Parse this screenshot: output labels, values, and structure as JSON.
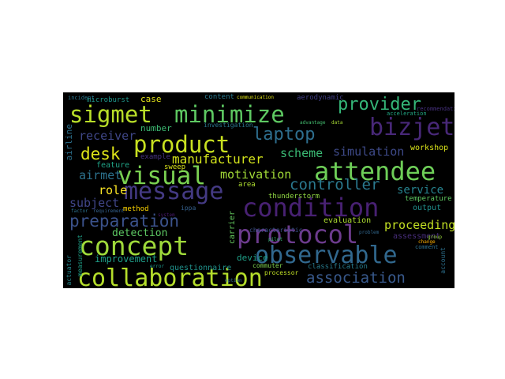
{
  "words": [
    {
      "text": "collaboration",
      "color": "#b5de2b"
    },
    {
      "text": "concept",
      "color": "#9fda3a"
    },
    {
      "text": "observable",
      "color": "#31688e"
    },
    {
      "text": "protocol",
      "color": "#6c3b8d"
    },
    {
      "text": "condition",
      "color": "#482173"
    },
    {
      "text": "attendee",
      "color": "#6ece58"
    },
    {
      "text": "message",
      "color": "#443a83"
    },
    {
      "text": "visual",
      "color": "#7ad151"
    },
    {
      "text": "product",
      "color": "#c8e020"
    },
    {
      "text": "sigmet",
      "color": "#b8de29"
    },
    {
      "text": "minimize",
      "color": "#5ec962"
    },
    {
      "text": "bizjet",
      "color": "#482878"
    },
    {
      "text": "provider",
      "color": "#35b779"
    },
    {
      "text": "laptop",
      "color": "#2e6e8e"
    },
    {
      "text": "desk",
      "color": "#dde318"
    },
    {
      "text": "preparation",
      "color": "#3b528b"
    },
    {
      "text": "association",
      "color": "#38598c"
    },
    {
      "text": "controller",
      "color": "#2a788e"
    },
    {
      "text": "manufacturer",
      "color": "#d2e21b"
    },
    {
      "text": "motivation",
      "color": "#a2da37"
    },
    {
      "text": "scheme",
      "color": "#3bbb75"
    },
    {
      "text": "simulation",
      "color": "#3e4a89"
    },
    {
      "text": "receiver",
      "color": "#3f4788"
    },
    {
      "text": "airmet",
      "color": "#2c728e"
    },
    {
      "text": "role",
      "color": "#fde725"
    },
    {
      "text": "subject",
      "color": "#404688"
    },
    {
      "text": "service",
      "color": "#26828e"
    },
    {
      "text": "proceeding",
      "color": "#c2df23"
    },
    {
      "text": "detection",
      "color": "#5dc863"
    },
    {
      "text": "improvement",
      "color": "#1f9e89"
    },
    {
      "text": "device",
      "color": "#1fa088"
    },
    {
      "text": "questionnaire",
      "color": "#20928c"
    },
    {
      "text": "evaluation",
      "color": "#addc30"
    },
    {
      "text": "number",
      "color": "#3dbc74"
    },
    {
      "text": "case",
      "color": "#e5e419"
    },
    {
      "text": "microburst",
      "color": "#1f968b"
    },
    {
      "text": "workshop",
      "color": "#d8e219"
    },
    {
      "text": "airline",
      "color": "#2c718e"
    },
    {
      "text": "feature",
      "color": "#20a386"
    },
    {
      "text": "example",
      "color": "#46337e"
    },
    {
      "text": "sweep",
      "color": "#dae319"
    },
    {
      "text": "investigation",
      "color": "#2a768e"
    },
    {
      "text": "content",
      "color": "#29798e"
    },
    {
      "text": "thunderstorm",
      "color": "#90d743"
    },
    {
      "text": "area",
      "color": "#addc30"
    },
    {
      "text": "output",
      "color": "#21908d"
    },
    {
      "text": "assessment",
      "color": "#472d7b"
    },
    {
      "text": "temperature",
      "color": "#5ec962"
    },
    {
      "text": "classification",
      "color": "#287c8e"
    },
    {
      "text": "characteristic",
      "color": "#3b528b"
    },
    {
      "text": "commuter",
      "color": "#7fd34e"
    },
    {
      "text": "processor",
      "color": "#c0df25"
    },
    {
      "text": "method",
      "color": "#ffd700"
    },
    {
      "text": "ippa",
      "color": "#35608d"
    },
    {
      "text": "carrier",
      "color": "#65cb5e"
    },
    {
      "text": "actuator",
      "color": "#23898e"
    },
    {
      "text": "measurement",
      "color": "#1fa088"
    },
    {
      "text": "account",
      "color": "#2d708e"
    },
    {
      "text": "incident",
      "color": "#2b758e"
    },
    {
      "text": "aerodynamic",
      "color": "#423f85"
    },
    {
      "text": "acceleration",
      "color": "#22a884"
    },
    {
      "text": "recommendation",
      "color": "#46317e"
    },
    {
      "text": "communication",
      "color": "#dfe318"
    },
    {
      "text": "factor",
      "color": "#2d718e"
    },
    {
      "text": "requirement",
      "color": "#34618d"
    },
    {
      "text": "system",
      "color": "#48186a"
    },
    {
      "text": "comment",
      "color": "#2e6f8e"
    },
    {
      "text": "advantage",
      "color": "#44bf70"
    },
    {
      "text": "change",
      "color": "#ffb000"
    },
    {
      "text": "group",
      "color": "#9bd93c"
    },
    {
      "text": "problem",
      "color": "#31678e"
    },
    {
      "text": "error",
      "color": "#1f988b"
    },
    {
      "text": "pilot",
      "color": "#38b977"
    },
    {
      "text": "data",
      "color": "#a8db34"
    },
    {
      "text": "option",
      "color": "#2f6b8e"
    }
  ]
}
